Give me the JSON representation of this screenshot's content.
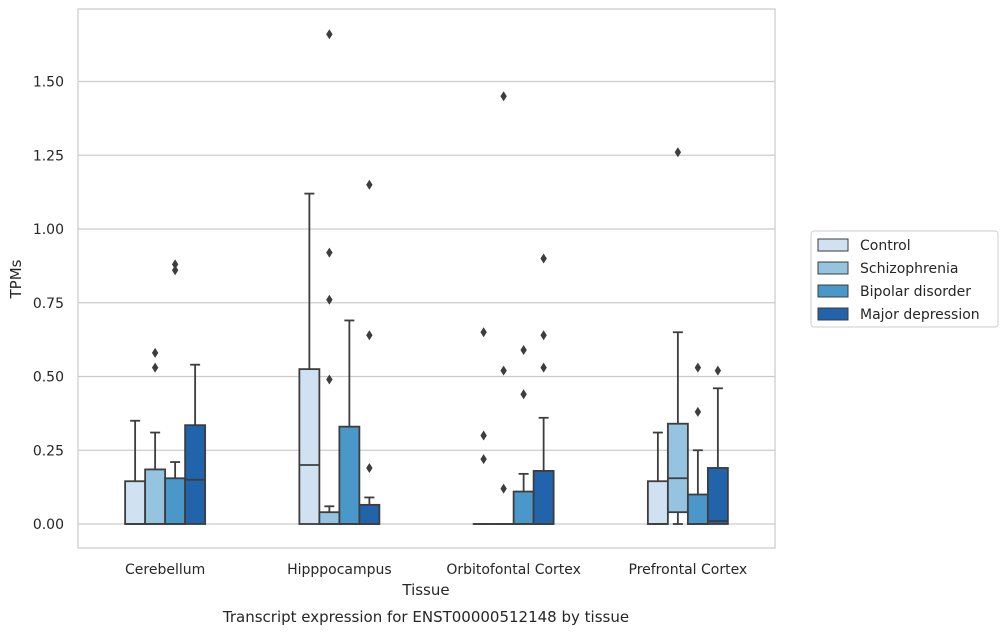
{
  "chart_data": {
    "type": "box",
    "xlabel": "Tissue",
    "ylabel": "TPMs",
    "caption": "Transcript expression for ENST00000512148 by tissue",
    "ylim": [
      -0.08,
      1.76
    ],
    "yticks": [
      0.0,
      0.25,
      0.5,
      0.75,
      1.0,
      1.25,
      1.5
    ],
    "ytick_labels": [
      "0.00",
      "0.25",
      "0.50",
      "0.75",
      "1.00",
      "1.25",
      "1.50"
    ],
    "categories": [
      "Cerebellum",
      "Hipppocampus",
      "Orbitofontal Cortex",
      "Prefrontal Cortex"
    ],
    "grid": "horizontal",
    "legend_position": "right",
    "series": [
      {
        "name": "Control",
        "color": "#d0e1f2",
        "boxes": [
          {
            "q1": 0.0,
            "median": 0.0,
            "q3": 0.145,
            "whisker_low": 0.0,
            "whisker_high": 0.35,
            "outliers": []
          },
          {
            "q1": 0.0,
            "median": 0.2,
            "q3": 0.525,
            "whisker_low": 0.0,
            "whisker_high": 1.12,
            "outliers": []
          },
          {
            "q1": 0.0,
            "median": 0.0,
            "q3": 0.0,
            "whisker_low": 0.0,
            "whisker_high": 0.0,
            "outliers": [
              0.65,
              0.3,
              0.22
            ]
          },
          {
            "q1": 0.0,
            "median": 0.0,
            "q3": 0.145,
            "whisker_low": 0.0,
            "whisker_high": 0.31,
            "outliers": []
          }
        ]
      },
      {
        "name": "Schizophrenia",
        "color": "#94c4df",
        "boxes": [
          {
            "q1": 0.0,
            "median": 0.0,
            "q3": 0.185,
            "whisker_low": 0.0,
            "whisker_high": 0.31,
            "outliers": [
              0.58,
              0.53
            ]
          },
          {
            "q1": 0.0,
            "median": 0.0,
            "q3": 0.04,
            "whisker_low": 0.0,
            "whisker_high": 0.06,
            "outliers": [
              1.66,
              0.92,
              0.76,
              0.49
            ]
          },
          {
            "q1": 0.0,
            "median": 0.0,
            "q3": 0.0,
            "whisker_low": 0.0,
            "whisker_high": 0.0,
            "outliers": [
              1.45,
              0.52,
              0.12
            ]
          },
          {
            "q1": 0.04,
            "median": 0.155,
            "q3": 0.34,
            "whisker_low": 0.0,
            "whisker_high": 0.65,
            "outliers": [
              1.26
            ]
          }
        ]
      },
      {
        "name": "Bipolar disorder",
        "color": "#4a98c9",
        "boxes": [
          {
            "q1": 0.0,
            "median": 0.0,
            "q3": 0.155,
            "whisker_low": 0.0,
            "whisker_high": 0.21,
            "outliers": [
              0.88,
              0.86
            ]
          },
          {
            "q1": 0.0,
            "median": 0.0,
            "q3": 0.33,
            "whisker_low": 0.0,
            "whisker_high": 0.69,
            "outliers": []
          },
          {
            "q1": 0.0,
            "median": 0.0,
            "q3": 0.11,
            "whisker_low": 0.0,
            "whisker_high": 0.17,
            "outliers": [
              0.59,
              0.44
            ]
          },
          {
            "q1": 0.0,
            "median": 0.0,
            "q3": 0.1,
            "whisker_low": 0.0,
            "whisker_high": 0.25,
            "outliers": [
              0.53,
              0.38
            ]
          }
        ]
      },
      {
        "name": "Major depression",
        "color": "#2164ab",
        "boxes": [
          {
            "q1": 0.0,
            "median": 0.15,
            "q3": 0.335,
            "whisker_low": 0.0,
            "whisker_high": 0.54,
            "outliers": []
          },
          {
            "q1": 0.0,
            "median": 0.0,
            "q3": 0.065,
            "whisker_low": 0.0,
            "whisker_high": 0.09,
            "outliers": [
              1.15,
              0.64,
              0.19
            ]
          },
          {
            "q1": 0.0,
            "median": 0.0,
            "q3": 0.18,
            "whisker_low": 0.0,
            "whisker_high": 0.36,
            "outliers": [
              0.9,
              0.64,
              0.53
            ]
          },
          {
            "q1": 0.0,
            "median": 0.01,
            "q3": 0.19,
            "whisker_low": 0.0,
            "whisker_high": 0.46,
            "outliers": [
              0.52
            ]
          }
        ]
      }
    ]
  }
}
